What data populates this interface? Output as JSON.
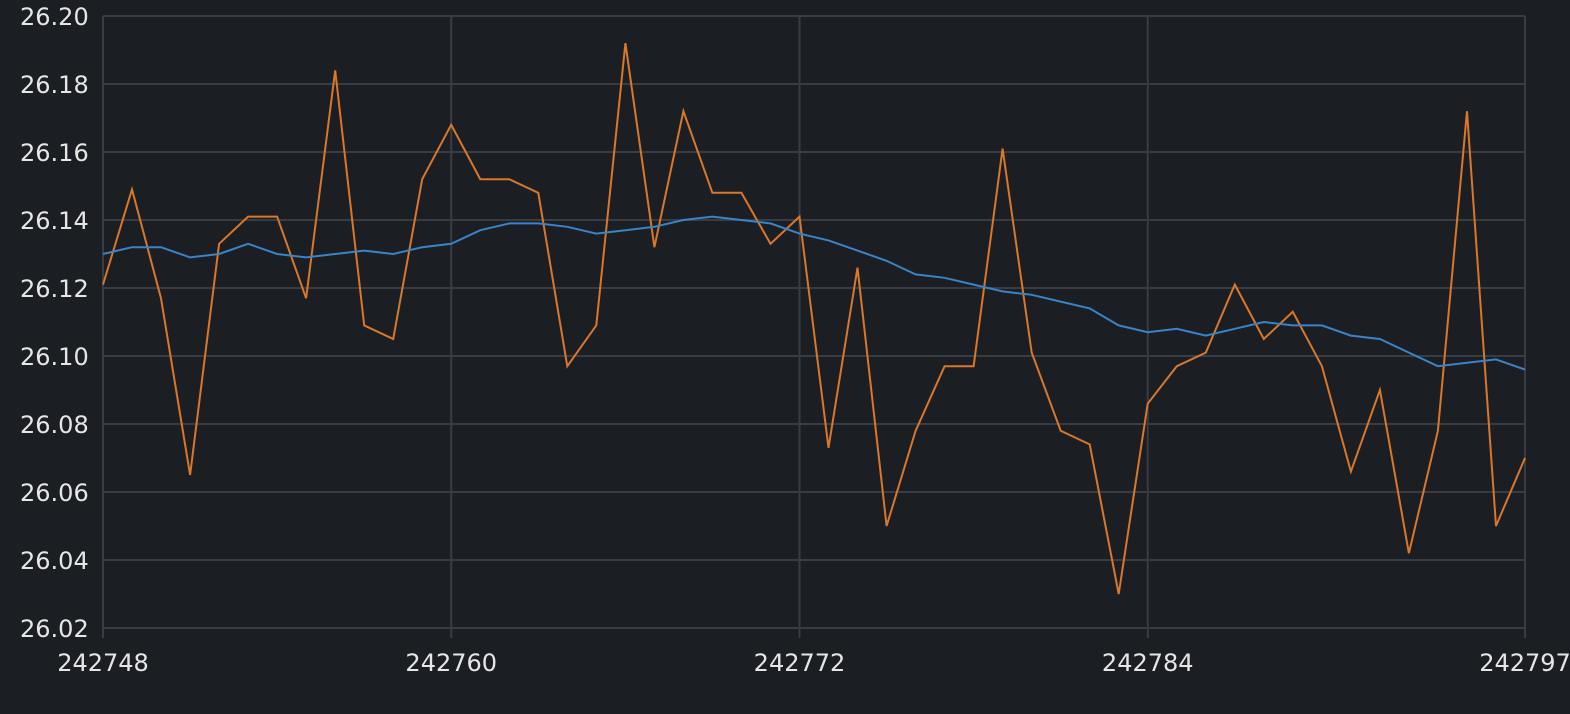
{
  "chart_data": {
    "type": "line",
    "title": "",
    "xlabel": "",
    "ylabel": "",
    "grid": true,
    "xlim": [
      242748,
      242797
    ],
    "ylim": [
      26.02,
      26.2
    ],
    "x_ticks": [
      242748,
      242760,
      242772,
      242784,
      242797
    ],
    "x_tick_labels": [
      "242748",
      "242760",
      "242772",
      "242784",
      "242797"
    ],
    "y_ticks": [
      26.02,
      26.04,
      26.06,
      26.08,
      26.1,
      26.12,
      26.14,
      26.16,
      26.18,
      26.2
    ],
    "y_tick_labels": [
      "26.02",
      "26.04",
      "26.06",
      "26.08",
      "26.10",
      "26.12",
      "26.14",
      "26.16",
      "26.18",
      "26.20"
    ],
    "x": [
      242748,
      242749,
      242750,
      242751,
      242752,
      242753,
      242754,
      242755,
      242756,
      242757,
      242758,
      242759,
      242760,
      242761,
      242762,
      242763,
      242764,
      242765,
      242766,
      242767,
      242768,
      242769,
      242770,
      242771,
      242772,
      242773,
      242774,
      242775,
      242776,
      242777,
      242778,
      242779,
      242780,
      242781,
      242782,
      242783,
      242784,
      242785,
      242786,
      242787,
      242788,
      242789,
      242790,
      242791,
      242792,
      242793,
      242794,
      242795,
      242796,
      242797
    ],
    "series": [
      {
        "color": "#d9772b",
        "values": [
          26.121,
          26.149,
          26.117,
          26.065,
          26.133,
          26.141,
          26.141,
          26.117,
          26.184,
          26.109,
          26.105,
          26.152,
          26.168,
          26.152,
          26.152,
          26.148,
          26.097,
          26.109,
          26.192,
          26.132,
          26.172,
          26.148,
          26.148,
          26.133,
          26.141,
          26.073,
          26.126,
          26.05,
          26.078,
          26.097,
          26.097,
          26.161,
          26.101,
          26.078,
          26.074,
          26.03,
          26.086,
          26.097,
          26.101,
          26.121,
          26.105,
          26.113,
          26.097,
          26.066,
          26.09,
          26.042,
          26.078,
          26.172,
          26.05,
          26.07
        ]
      },
      {
        "color": "#3a83c6",
        "values": [
          26.13,
          26.132,
          26.132,
          26.129,
          26.13,
          26.133,
          26.13,
          26.129,
          26.13,
          26.131,
          26.13,
          26.132,
          26.133,
          26.137,
          26.139,
          26.139,
          26.138,
          26.136,
          26.137,
          26.138,
          26.14,
          26.141,
          26.14,
          26.139,
          26.136,
          26.134,
          26.131,
          26.128,
          26.124,
          26.123,
          26.121,
          26.119,
          26.118,
          26.116,
          26.114,
          26.109,
          26.107,
          26.108,
          26.106,
          26.108,
          26.11,
          26.109,
          26.109,
          26.106,
          26.105,
          26.101,
          26.097,
          26.098,
          26.099,
          26.096
        ]
      }
    ]
  }
}
